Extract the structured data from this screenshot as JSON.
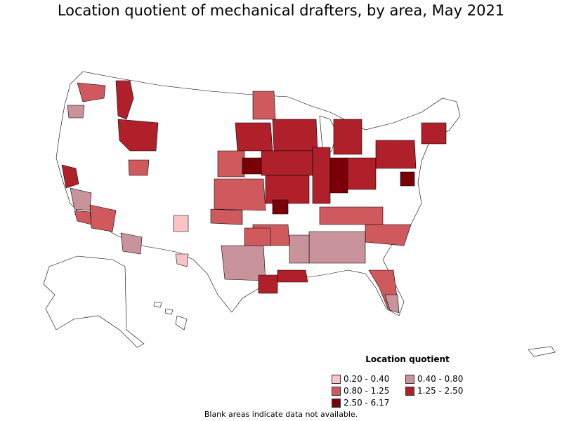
{
  "title": "Location quotient of mechanical drafters, by area, May 2021",
  "legend": {
    "title": "Location quotient",
    "items": [
      {
        "label": "0.20 - 0.40",
        "color": "#f9c3c8"
      },
      {
        "label": "0.40 - 0.80",
        "color": "#c8939a"
      },
      {
        "label": "0.80 - 1.25",
        "color": "#d0595e"
      },
      {
        "label": "1.25 - 2.50",
        "color": "#b0202a"
      },
      {
        "label": "2.50 - 6.17",
        "color": "#7a0008"
      }
    ]
  },
  "note": "Blank areas indicate data not available."
}
